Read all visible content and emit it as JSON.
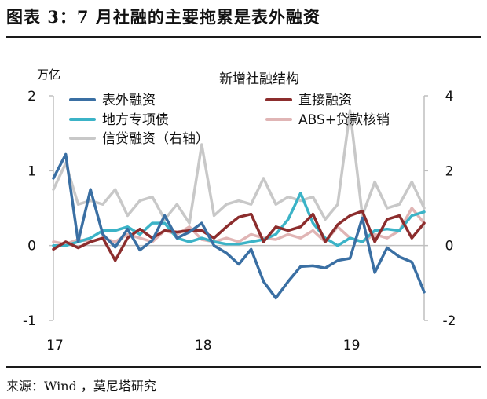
{
  "figure": {
    "title": "图表 3：7 月社融的主要拖累是表外融资",
    "source": "来源：Wind ，莫尼塔研究"
  },
  "chart_data": {
    "type": "line",
    "title": "新增社融结构",
    "ylabel_left": "万亿",
    "ylim_left": [
      -1,
      2
    ],
    "ylim_right": [
      -2,
      4
    ],
    "yticks_left": [
      "2",
      "1",
      "0",
      "-1"
    ],
    "yticks_right": [
      "4",
      "2",
      "0",
      "-2"
    ],
    "xticks": [
      "17",
      "18",
      "19"
    ],
    "x": [
      "2017-01",
      "2017-02",
      "2017-03",
      "2017-04",
      "2017-05",
      "2017-06",
      "2017-07",
      "2017-08",
      "2017-09",
      "2017-10",
      "2017-11",
      "2017-12",
      "2018-01",
      "2018-02",
      "2018-03",
      "2018-04",
      "2018-05",
      "2018-06",
      "2018-07",
      "2018-08",
      "2018-09",
      "2018-10",
      "2018-11",
      "2018-12",
      "2019-01",
      "2019-02",
      "2019-03",
      "2019-04",
      "2019-05",
      "2019-06",
      "2019-07"
    ],
    "legend": "top, two columns",
    "grid": false,
    "series": [
      {
        "name": "表外融资",
        "axis": "left",
        "color": "#3a6fa3",
        "values": [
          0.9,
          1.22,
          0.05,
          0.75,
          0.15,
          -0.02,
          0.22,
          -0.06,
          0.07,
          0.4,
          0.1,
          0.18,
          0.3,
          0.0,
          -0.1,
          -0.25,
          -0.05,
          -0.48,
          -0.7,
          -0.48,
          -0.28,
          -0.27,
          -0.3,
          -0.2,
          -0.17,
          0.37,
          -0.36,
          -0.03,
          -0.15,
          -0.22,
          -0.62
        ]
      },
      {
        "name": "直接融资",
        "axis": "left",
        "color": "#8c2d2d",
        "values": [
          -0.05,
          0.05,
          -0.03,
          0.05,
          0.1,
          -0.2,
          0.1,
          0.22,
          0.1,
          0.2,
          0.18,
          0.2,
          0.2,
          0.1,
          0.25,
          0.38,
          0.42,
          0.05,
          0.25,
          0.2,
          0.25,
          0.42,
          0.05,
          0.28,
          0.4,
          0.46,
          0.05,
          0.35,
          0.4,
          0.1,
          0.3
        ]
      },
      {
        "name": "地方专项债",
        "axis": "left",
        "color": "#3bb3c7",
        "values": [
          0.0,
          0.0,
          0.05,
          0.1,
          0.2,
          0.2,
          0.25,
          0.15,
          0.3,
          0.3,
          0.1,
          0.05,
          0.1,
          0.05,
          0.02,
          0.02,
          0.05,
          0.08,
          0.15,
          0.35,
          0.7,
          0.3,
          0.1,
          0.0,
          0.1,
          0.05,
          0.2,
          0.22,
          0.2,
          0.4,
          0.45
        ]
      },
      {
        "name": "ABS+贷款核销",
        "axis": "left",
        "color": "#e0b5b5",
        "values": [
          0.05,
          0.02,
          0.08,
          0.05,
          0.1,
          0.05,
          0.15,
          0.1,
          0.05,
          0.2,
          0.15,
          0.25,
          0.08,
          0.05,
          0.1,
          0.05,
          0.15,
          0.1,
          0.08,
          0.15,
          0.1,
          0.2,
          0.05,
          0.25,
          0.1,
          0.05,
          0.15,
          0.1,
          0.2,
          0.5,
          0.3
        ]
      },
      {
        "name": "信贷融资（右轴）",
        "axis": "right",
        "color": "#c8c8c8",
        "values": [
          1.5,
          2.2,
          1.1,
          1.2,
          1.1,
          1.5,
          0.8,
          1.2,
          1.3,
          0.7,
          1.1,
          0.6,
          2.7,
          0.8,
          1.1,
          1.2,
          1.1,
          1.8,
          1.1,
          1.3,
          1.2,
          1.3,
          0.7,
          1.1,
          3.6,
          0.8,
          1.7,
          1.0,
          1.1,
          1.7,
          1.0
        ]
      }
    ]
  }
}
